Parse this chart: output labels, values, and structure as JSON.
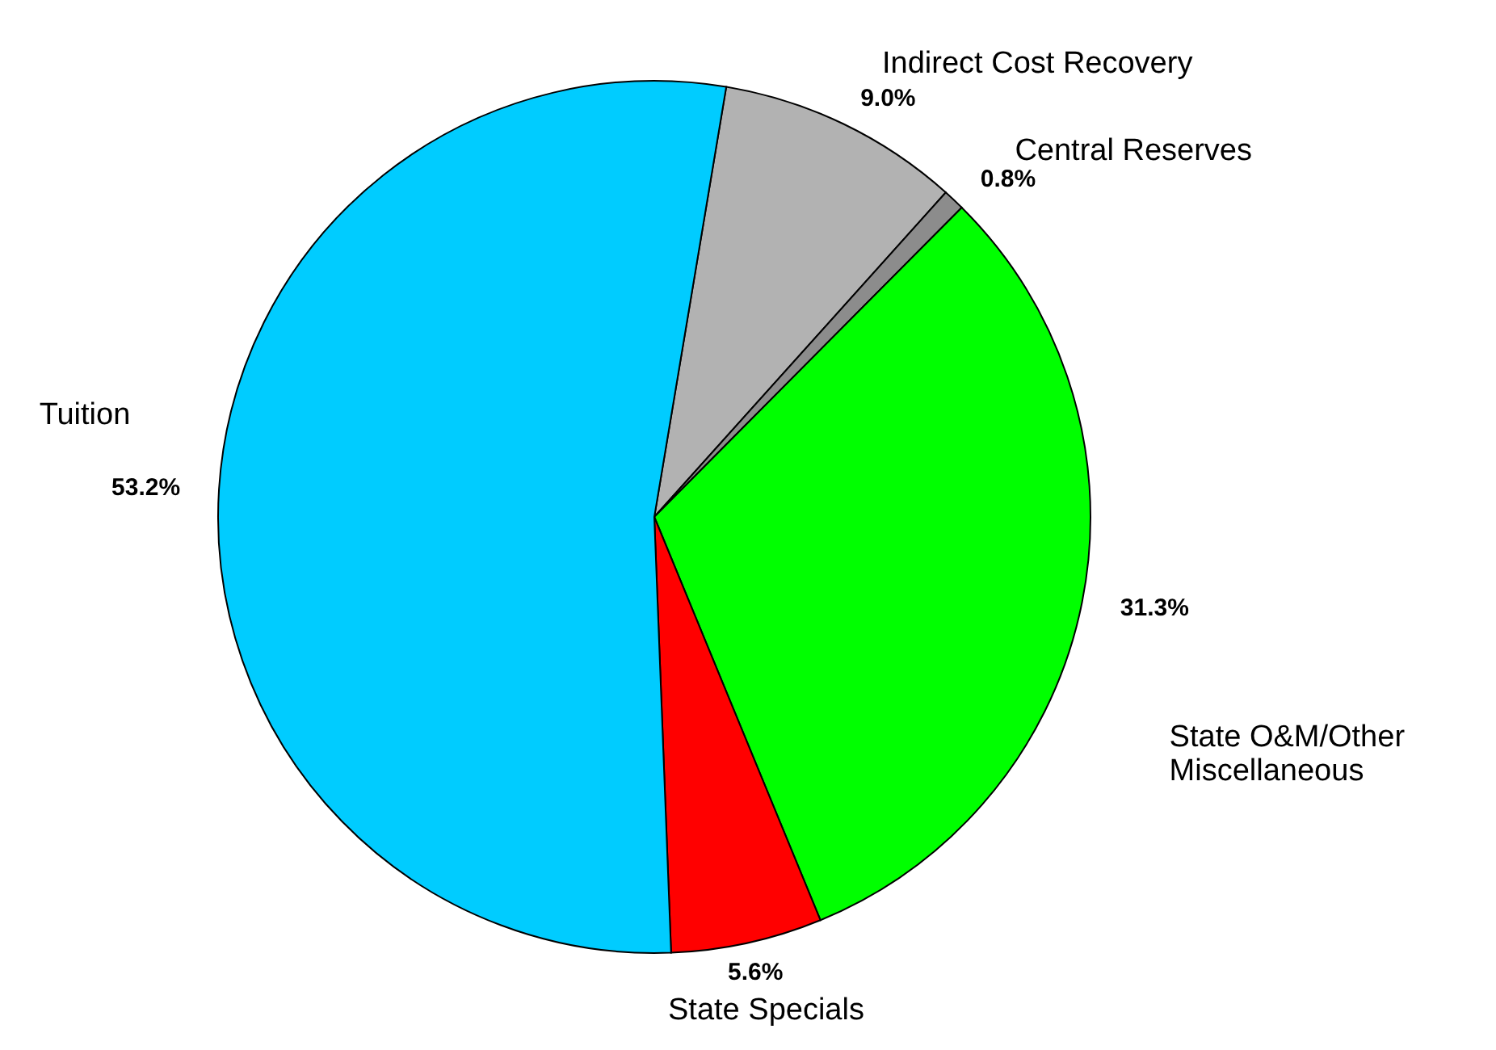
{
  "chart_data": {
    "type": "pie",
    "categories": [
      "Indirect Cost Recovery",
      "Central Reserves",
      "State O&M/Other Miscellaneous",
      "State Specials",
      "Tuition"
    ],
    "values": [
      9.0,
      0.8,
      31.3,
      5.6,
      53.2
    ],
    "colors": [
      "#b2b2b2",
      "#8c8c8c",
      "#00ff00",
      "#ff0000",
      "#00ccff"
    ],
    "value_labels": [
      "9.0%",
      "0.8%",
      "31.3%",
      "5.6%",
      "53.2%"
    ]
  }
}
